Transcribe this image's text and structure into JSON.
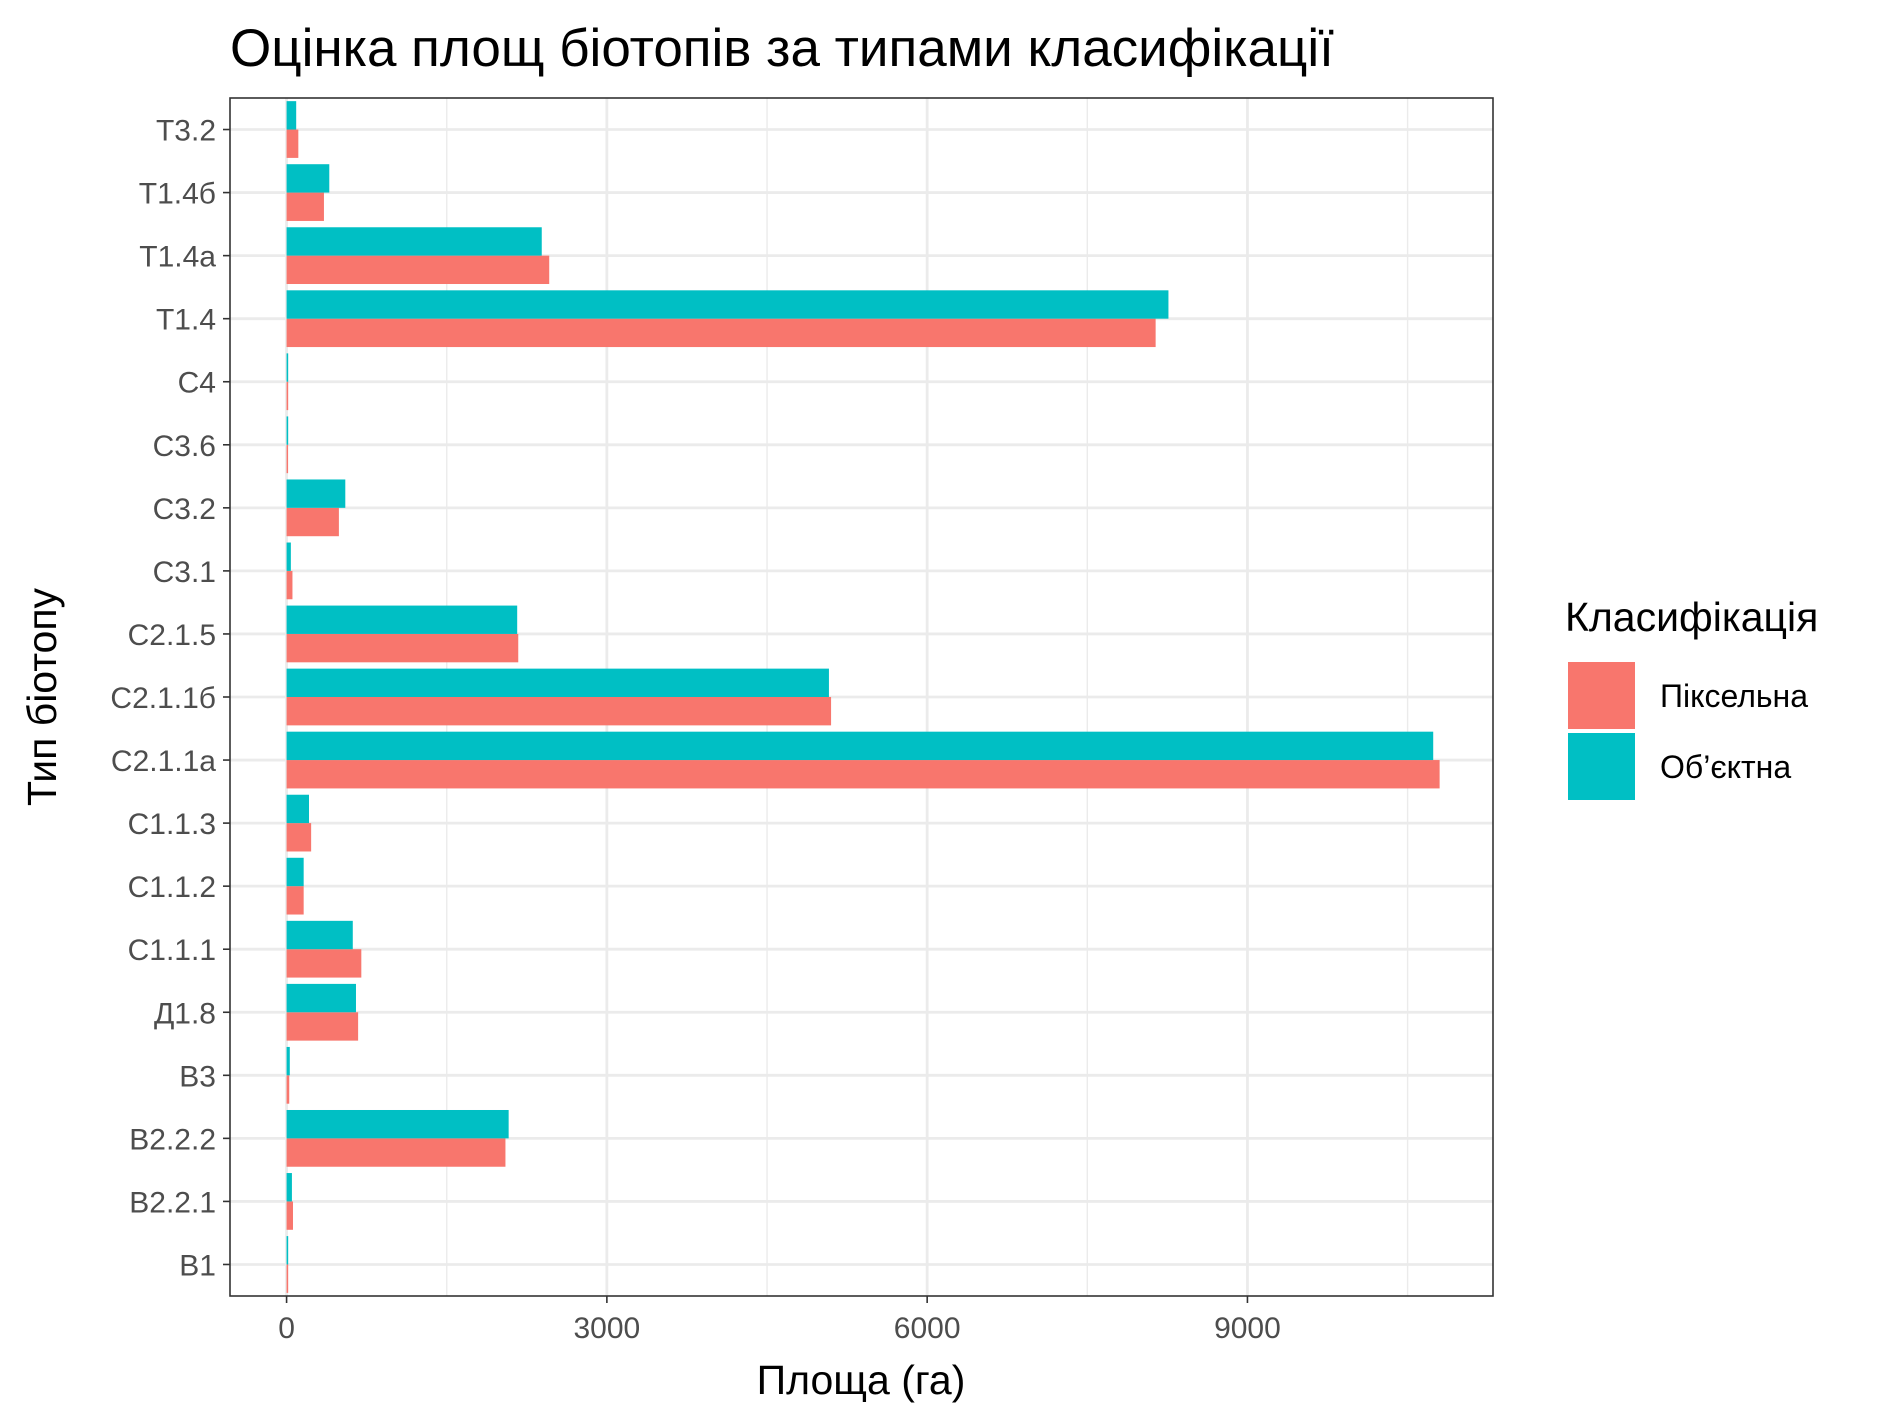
{
  "chart_data": {
    "type": "bar",
    "orientation": "horizontal",
    "title": "Оцінка площ біотопів за типами класифікації",
    "xlabel": "Площа (га)",
    "ylabel": "Тип біотопу",
    "xlim": [
      -530,
      11300
    ],
    "xticks": [
      0,
      3000,
      6000,
      9000
    ],
    "xtick_labels": [
      "0",
      "3000",
      "6000",
      "9000"
    ],
    "grid": true,
    "legend_position": "right",
    "legend_title": "Класифікація",
    "categories": [
      "В1",
      "В2.2.1",
      "В2.2.2",
      "В3",
      "Д1.8",
      "С1.1.1",
      "С1.1.2",
      "С1.1.3",
      "С2.1.1а",
      "С2.1.1б",
      "С2.1.5",
      "С3.1",
      "С3.2",
      "С3.6",
      "С4",
      "Т1.4",
      "Т1.4а",
      "Т1.4б",
      "Т3.2"
    ],
    "series": [
      {
        "name": "Піксельна",
        "color": "#F8766D",
        "values": [
          15,
          60,
          2050,
          25,
          670,
          700,
          160,
          230,
          10800,
          5100,
          2170,
          55,
          490,
          12,
          15,
          8140,
          2460,
          350,
          110
        ]
      },
      {
        "name": "Об’єктна",
        "color": "#00BFC4",
        "values": [
          15,
          50,
          2080,
          30,
          650,
          620,
          160,
          210,
          10740,
          5080,
          2160,
          40,
          550,
          15,
          15,
          8260,
          2390,
          400,
          90
        ]
      }
    ]
  }
}
